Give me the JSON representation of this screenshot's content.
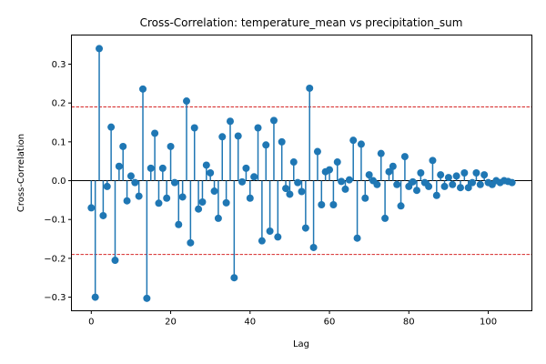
{
  "chart_data": {
    "type": "stem",
    "title": "Cross-Correlation: temperature_mean vs precipitation_sum",
    "xlabel": "Lag",
    "ylabel": "Cross-Correlation",
    "xlim": [
      -5,
      111
    ],
    "ylim": [
      -0.335,
      0.375
    ],
    "xticks": [
      0,
      20,
      40,
      60,
      80,
      100
    ],
    "yticks": [
      -0.3,
      -0.2,
      -0.1,
      0.0,
      0.1,
      0.2,
      0.3
    ],
    "ytick_labels": [
      "−0.3",
      "−0.2",
      "−0.1",
      "0.0",
      "0.1",
      "0.2",
      "0.3"
    ],
    "confidence_bounds": [
      0.19,
      -0.19
    ],
    "colors": {
      "stem": "#1f77b4",
      "bound": "#d62728",
      "baseline": "#000000"
    },
    "x": [
      0,
      1,
      2,
      3,
      4,
      5,
      6,
      7,
      8,
      9,
      10,
      11,
      12,
      13,
      14,
      15,
      16,
      17,
      18,
      19,
      20,
      21,
      22,
      23,
      24,
      25,
      26,
      27,
      28,
      29,
      30,
      31,
      32,
      33,
      34,
      35,
      36,
      37,
      38,
      39,
      40,
      41,
      42,
      43,
      44,
      45,
      46,
      47,
      48,
      49,
      50,
      51,
      52,
      53,
      54,
      55,
      56,
      57,
      58,
      59,
      60,
      61,
      62,
      63,
      64,
      65,
      66,
      67,
      68,
      69,
      70,
      71,
      72,
      73,
      74,
      75,
      76,
      77,
      78,
      79,
      80,
      81,
      82,
      83,
      84,
      85,
      86,
      87,
      88,
      89,
      90,
      91,
      92,
      93,
      94,
      95,
      96,
      97,
      98,
      99,
      100,
      101,
      102,
      103,
      104,
      105,
      106
    ],
    "values": [
      -0.07,
      -0.3,
      0.34,
      -0.09,
      -0.015,
      0.138,
      -0.205,
      0.037,
      0.088,
      -0.052,
      0.012,
      -0.005,
      -0.04,
      0.236,
      -0.303,
      0.032,
      0.122,
      -0.058,
      0.032,
      -0.045,
      0.088,
      -0.005,
      -0.113,
      -0.042,
      0.205,
      -0.16,
      0.136,
      -0.073,
      -0.055,
      0.04,
      0.02,
      -0.027,
      -0.097,
      0.113,
      -0.057,
      0.153,
      -0.25,
      0.115,
      -0.003,
      0.032,
      -0.045,
      0.01,
      0.136,
      -0.155,
      0.092,
      -0.13,
      0.155,
      -0.145,
      0.1,
      -0.02,
      -0.035,
      0.048,
      -0.005,
      -0.028,
      -0.122,
      0.238,
      -0.172,
      0.075,
      -0.062,
      0.023,
      0.028,
      -0.062,
      0.048,
      -0.002,
      -0.022,
      0.002,
      0.104,
      -0.148,
      0.094,
      -0.045,
      0.015,
      0.0,
      -0.01,
      0.07,
      -0.097,
      0.023,
      0.037,
      -0.01,
      -0.065,
      0.062,
      -0.015,
      -0.003,
      -0.025,
      0.02,
      -0.005,
      -0.015,
      0.052,
      -0.038,
      0.015,
      -0.015,
      0.008,
      -0.01,
      0.012,
      -0.018,
      0.02,
      -0.018,
      -0.005,
      0.02,
      -0.01,
      0.015,
      -0.005,
      -0.01,
      0.0,
      -0.005,
      0.0,
      -0.002,
      -0.005
    ]
  }
}
